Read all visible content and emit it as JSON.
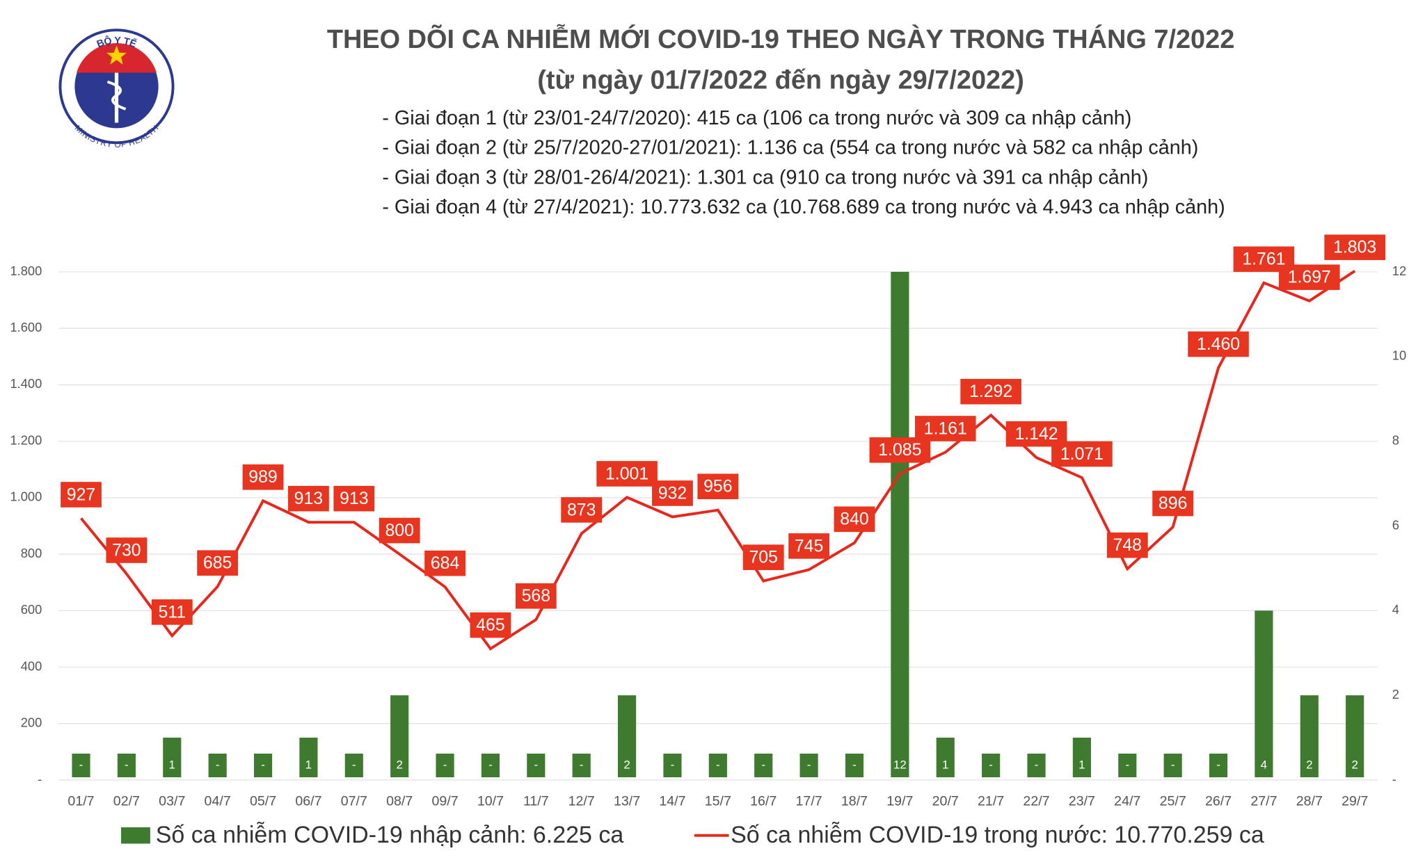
{
  "logo": {
    "top": "BỘ Y TẾ",
    "bottom": "MINISTRY OF HEALTH"
  },
  "chart_data": {
    "type": "combo",
    "title": "THEO DÕI CA NHIỄM MỚI COVID-19 THEO NGÀY TRONG THÁNG 7/2022",
    "subtitle": "(từ ngày 01/7/2022 đến ngày 29/7/2022)",
    "annotations": [
      "- Giai đoạn 1 (từ 23/01-24/7/2020): 415 ca (106 ca trong nước và 309 ca nhập cảnh)",
      "- Giai đoạn 2 (từ 25/7/2020-27/01/2021): 1.136 ca (554 ca trong nước và 582 ca nhập cảnh)",
      "- Giai đoạn 3 (từ 28/01-26/4/2021): 1.301 ca (910 ca trong nước và 391 ca nhập cảnh)",
      "- Giai đoạn 4 (từ 27/4/2021): 10.773.632 ca (10.768.689 ca trong nước và 4.943 ca nhập cảnh)"
    ],
    "categories": [
      "01/7",
      "02/7",
      "03/7",
      "04/7",
      "05/7",
      "06/7",
      "07/7",
      "08/7",
      "09/7",
      "10/7",
      "11/7",
      "12/7",
      "13/7",
      "14/7",
      "15/7",
      "16/7",
      "17/7",
      "18/7",
      "19/7",
      "20/7",
      "21/7",
      "22/7",
      "23/7",
      "24/7",
      "25/7",
      "26/7",
      "27/7",
      "28/7",
      "29/7"
    ],
    "series": [
      {
        "name": "Số ca nhiễm COVID-19 nhập cảnh: 6.225 ca",
        "type": "bar",
        "axis": "y2",
        "color": "#3e7b2e",
        "values": [
          0,
          0,
          1,
          0,
          0,
          1,
          0,
          2,
          0,
          0,
          0,
          0,
          2,
          0,
          0,
          0,
          0,
          0,
          12,
          1,
          0,
          0,
          1,
          0,
          0,
          0,
          4,
          2,
          2
        ],
        "value_labels": [
          "-",
          "-",
          "1",
          "-",
          "-",
          "1",
          "-",
          "2",
          "-",
          "-",
          "-",
          "-",
          "2",
          "-",
          "-",
          "-",
          "-",
          "-",
          "12",
          "1",
          "-",
          "-",
          "1",
          "-",
          "-",
          "-",
          "4",
          "2",
          "2"
        ]
      },
      {
        "name": "Số ca nhiễm COVID-19 trong nước: 10.770.259 ca",
        "type": "line",
        "color": "#e8261c",
        "values": [
          927,
          730,
          511,
          685,
          989,
          913,
          913,
          800,
          684,
          465,
          568,
          873,
          1001,
          932,
          956,
          705,
          745,
          840,
          1085,
          1161,
          1292,
          1142,
          1071,
          748,
          896,
          1460,
          1761,
          1697,
          1803
        ],
        "value_labels": [
          "927",
          "730",
          "511",
          "685",
          "989",
          "913",
          "913",
          "800",
          "684",
          "465",
          "568",
          "873",
          "1.001",
          "932",
          "956",
          "705",
          "745",
          "840",
          "1.085",
          "1.161",
          "1.292",
          "1.142",
          "1.071",
          "748",
          "896",
          "1.460",
          "1.761",
          "1.697",
          "1.803"
        ]
      }
    ],
    "ylim": [
      0,
      1800
    ],
    "yticks": [
      {
        "value": 0,
        "label": "-"
      },
      200,
      400,
      600,
      800,
      {
        "value": 1000,
        "label": "1.000"
      },
      {
        "value": 1200,
        "label": "1.200"
      },
      {
        "value": 1400,
        "label": "1.400"
      },
      {
        "value": 1600,
        "label": "1.600"
      },
      {
        "value": 1800,
        "label": "1.800"
      }
    ],
    "y2lim": [
      0,
      12
    ],
    "y2ticks": [
      {
        "value": 0,
        "label": "-"
      },
      2,
      4,
      6,
      8,
      10,
      12
    ],
    "grid": true
  }
}
